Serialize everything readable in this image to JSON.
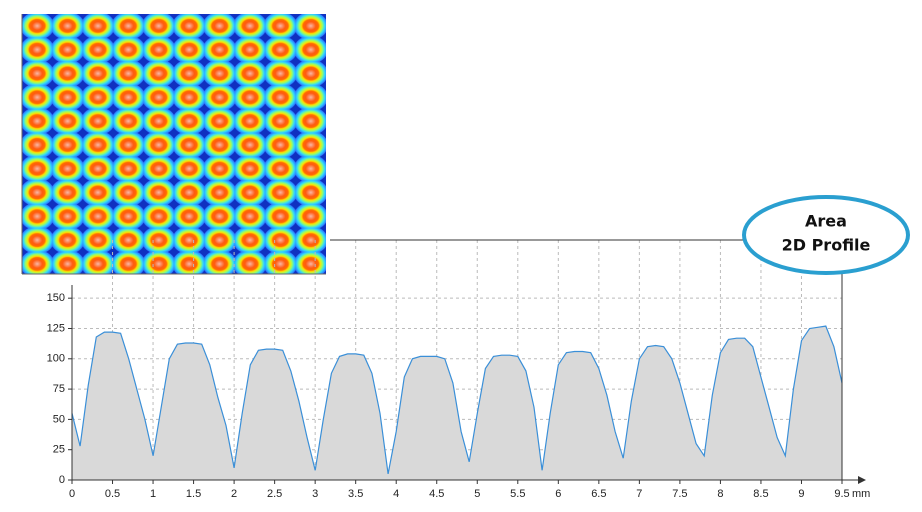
{
  "chart_data": {
    "type": "area",
    "x_unit": "mm",
    "x": [
      0,
      0.1,
      0.2,
      0.3,
      0.4,
      0.5,
      0.6,
      0.7,
      0.8,
      0.9,
      1,
      1.1,
      1.2,
      1.3,
      1.4,
      1.5,
      1.6,
      1.7,
      1.8,
      1.9,
      2,
      2.1,
      2.2,
      2.3,
      2.4,
      2.5,
      2.6,
      2.7,
      2.8,
      2.9,
      3,
      3.1,
      3.2,
      3.3,
      3.4,
      3.5,
      3.6,
      3.7,
      3.8,
      3.9,
      4,
      4.1,
      4.2,
      4.3,
      4.4,
      4.5,
      4.6,
      4.7,
      4.8,
      4.9,
      5,
      5.1,
      5.2,
      5.3,
      5.4,
      5.5,
      5.6,
      5.7,
      5.8,
      5.9,
      6,
      6.1,
      6.2,
      6.3,
      6.4,
      6.5,
      6.6,
      6.7,
      6.8,
      6.9,
      7,
      7.1,
      7.2,
      7.3,
      7.4,
      7.5,
      7.6,
      7.7,
      7.8,
      7.9,
      8,
      8.1,
      8.2,
      8.3,
      8.4,
      8.5,
      8.6,
      8.7,
      8.8,
      8.9,
      9,
      9.1,
      9.2,
      9.3,
      9.4,
      9.5
    ],
    "values": [
      55,
      28,
      78,
      118,
      122,
      122,
      121,
      100,
      75,
      50,
      20,
      60,
      100,
      112,
      113,
      113,
      112,
      95,
      68,
      45,
      10,
      55,
      95,
      107,
      108,
      108,
      107,
      90,
      65,
      35,
      8,
      50,
      88,
      102,
      104,
      104,
      103,
      88,
      55,
      5,
      40,
      85,
      100,
      102,
      102,
      102,
      100,
      80,
      40,
      15,
      55,
      92,
      102,
      103,
      103,
      102,
      90,
      60,
      8,
      55,
      95,
      105,
      106,
      106,
      105,
      92,
      70,
      40,
      18,
      65,
      100,
      110,
      111,
      110,
      100,
      80,
      55,
      30,
      20,
      70,
      105,
      116,
      117,
      117,
      110,
      85,
      60,
      35,
      20,
      75,
      115,
      125,
      126,
      127,
      110,
      80
    ],
    "color": "#3a8fd8",
    "fill": "#d9d9d9",
    "xlim": [
      0,
      9.5
    ],
    "ylim": [
      0,
      198
    ],
    "xticks": [
      0,
      0.5,
      1,
      1.5,
      2,
      2.5,
      3,
      3.5,
      4,
      4.5,
      5,
      5.5,
      6,
      6.5,
      7,
      7.5,
      8,
      8.5,
      9,
      9.5
    ],
    "yticks": [
      0,
      25,
      50,
      75,
      100,
      125,
      150
    ],
    "grid": true
  },
  "callout": {
    "lines": [
      "Area",
      "2D Profile"
    ]
  }
}
